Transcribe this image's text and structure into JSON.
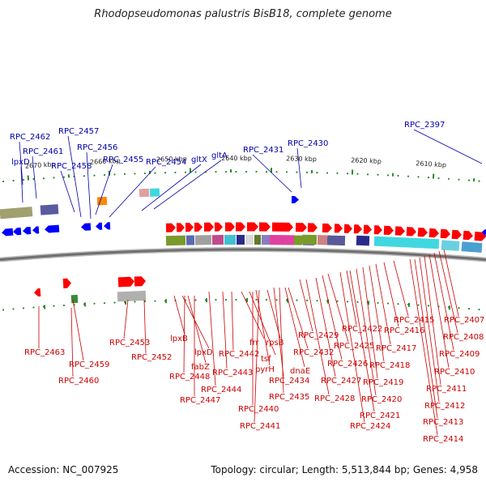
{
  "title": "Rhodopseudomonas palustris BisB18, complete genome",
  "accession": "Accession: NC_007925",
  "summary": "Topology: circular; Length: 5,513,844 bp; Genes: 4,958",
  "colors": {
    "forward_gene": "#ff0000",
    "reverse_gene": "#0000ff",
    "backbone": "#777777",
    "kbp_tick": "#2a8a2a",
    "upper_label": "#0000aa",
    "lower_label": "#cc0000"
  },
  "kbp_ticks": [
    "2670 kbp",
    "2660 kbp",
    "2650 kbp",
    "2640 kbp",
    "2630 kbp",
    "2620 kbp",
    "2610 kbp"
  ],
  "upper_labels": [
    "RPC_2462",
    "RPC_2461",
    "lpxD",
    "RPC_2457",
    "RPC_2456",
    "RPC_2458",
    "RPC_2455",
    "RPC_2454",
    "gltX",
    "gltA",
    "RPC_2431",
    "RPC_2430",
    "RPC_2397"
  ],
  "lower_labels": [
    "RPC_2463",
    "RPC_2459",
    "RPC_2460",
    "RPC_2453",
    "RPC_2452",
    "lpxB",
    "lpxD",
    "fabZ",
    "RPC_2448",
    "RPC_2447",
    "RPC_2444",
    "RPC_2443",
    "RPC_2442",
    "frr",
    "tsf",
    "pyrH",
    "RPC_2440",
    "RPC_2441",
    "rpsB",
    "RPC_2434",
    "RPC_2435",
    "dnaE",
    "RPC_2432",
    "RPC_2429",
    "RPC_2428",
    "RPC_2427",
    "RPC_2426",
    "RPC_2425",
    "RPC_2424",
    "RPC_2422",
    "RPC_2421",
    "RPC_2420",
    "RPC_2419",
    "RPC_2418",
    "RPC_2417",
    "RPC_2416",
    "RPC_2415",
    "RPC_2414",
    "RPC_2413",
    "RPC_2412",
    "RPC_2411",
    "RPC_2410",
    "RPC_2409",
    "RPC_2408",
    "RPC_2407"
  ]
}
